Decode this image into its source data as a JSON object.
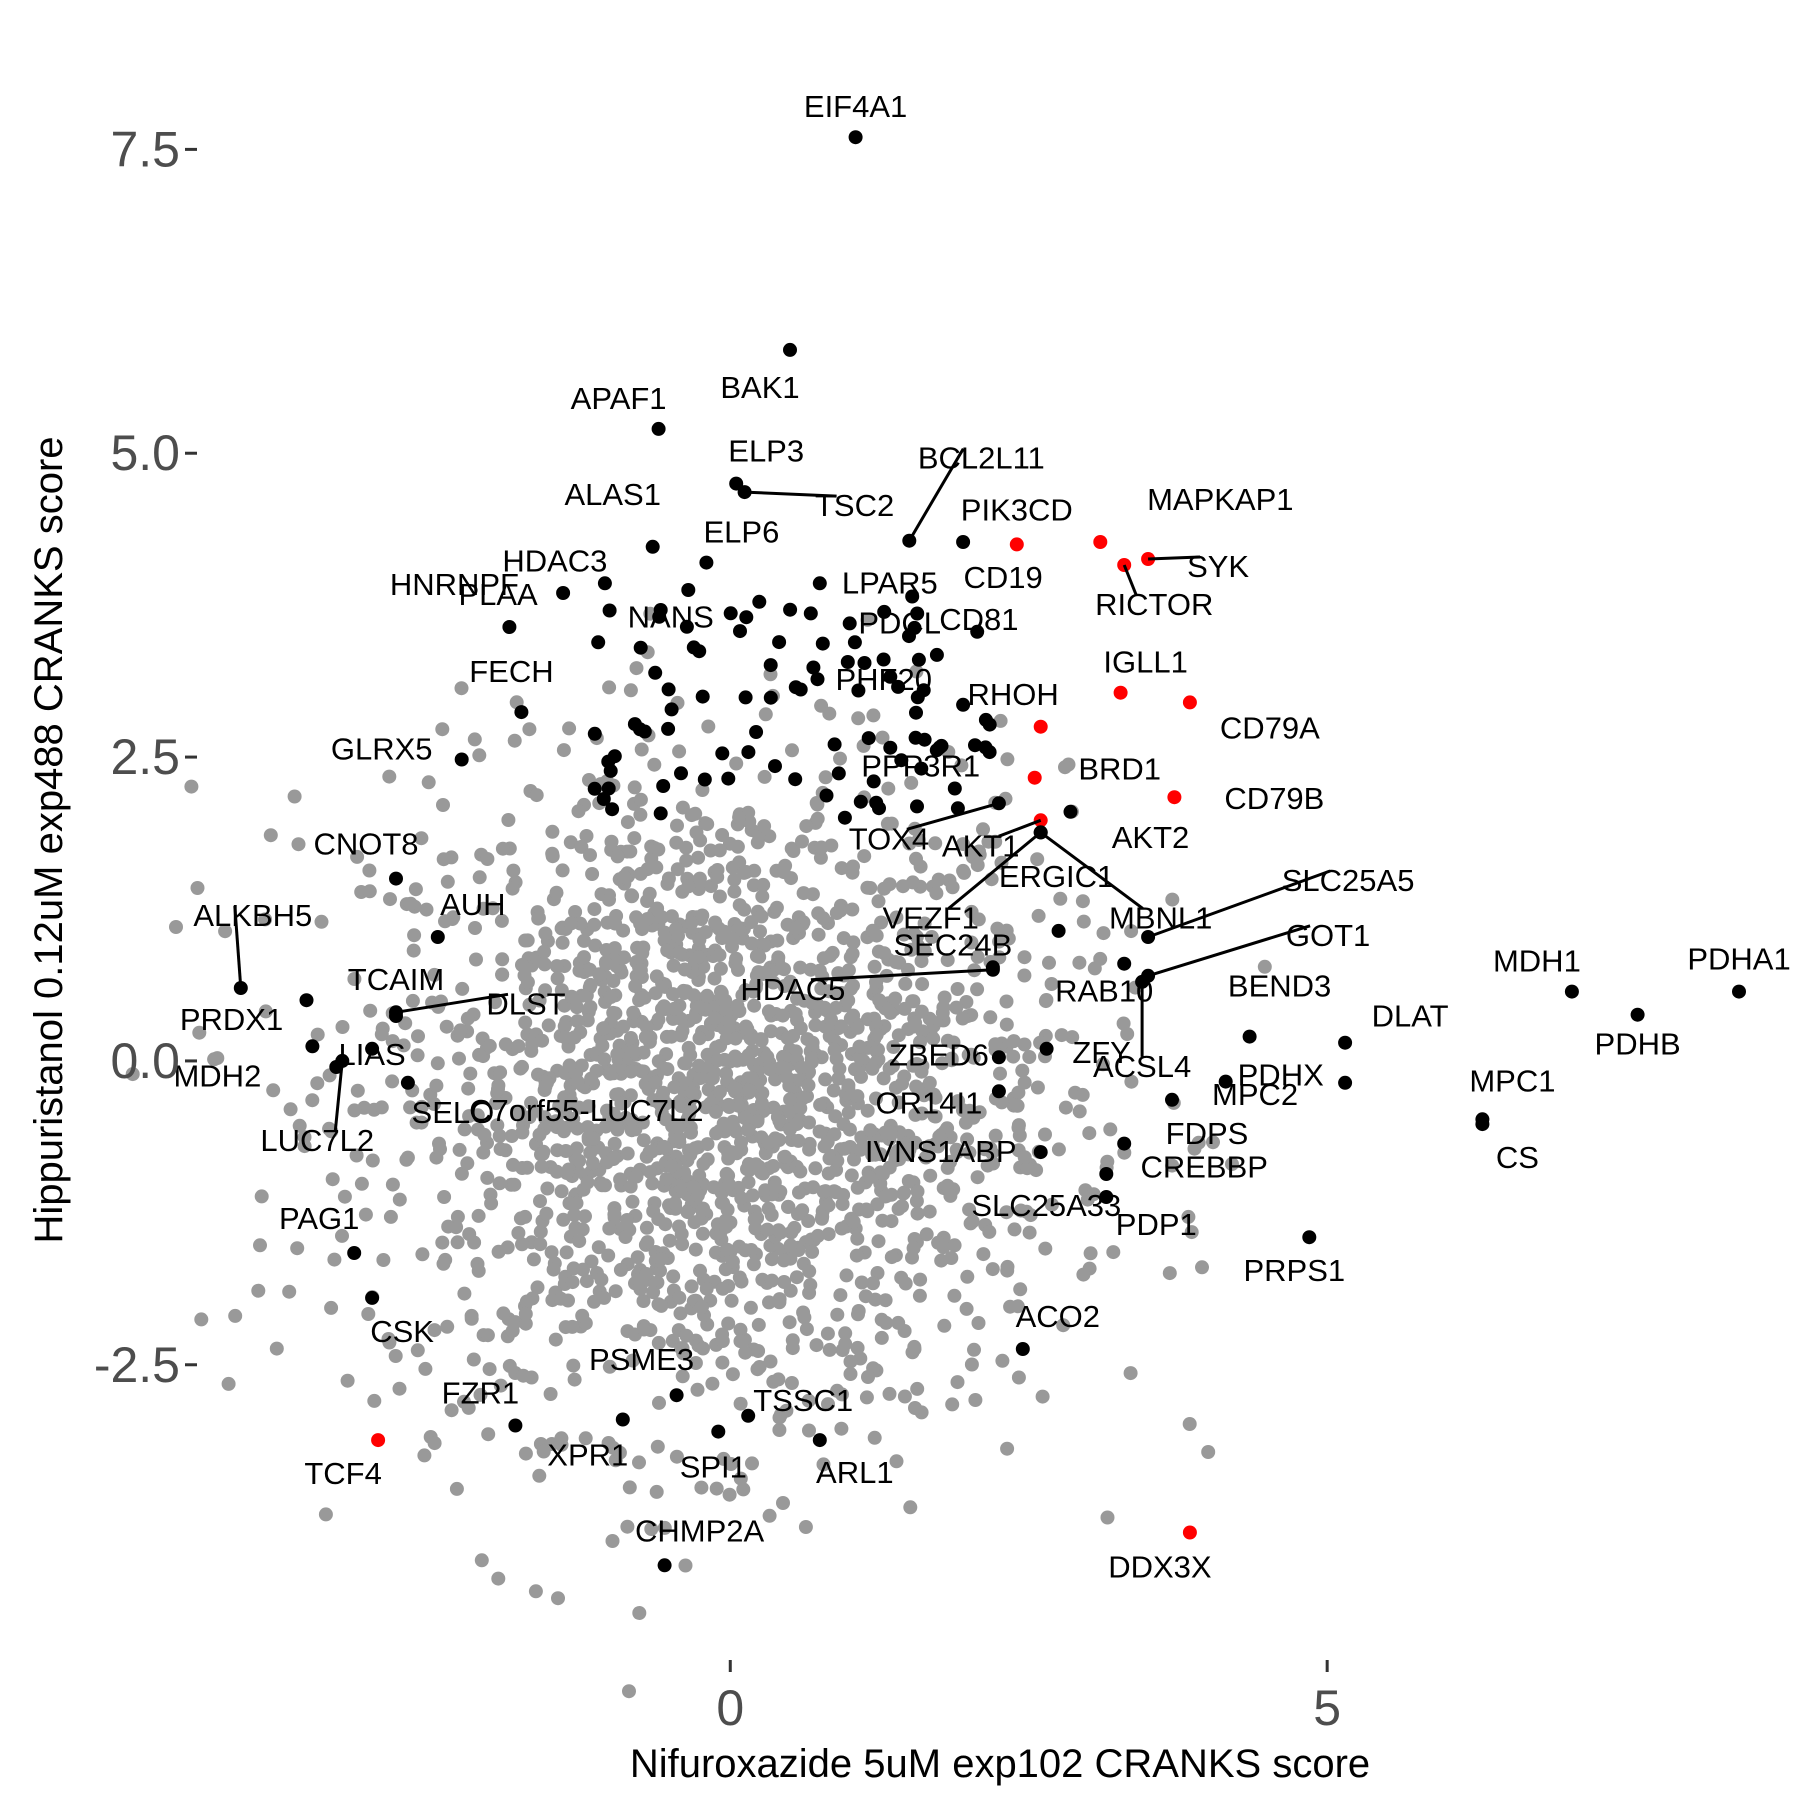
{
  "chart_data": {
    "type": "scatter",
    "title": "",
    "xlabel": "Nifuroxazide 5uM exp102 CRANKS score",
    "ylabel": "Hippuristanol 0.12uM exp488 CRANKS score",
    "xlim": [
      -4.4,
      8.5
    ],
    "ylim": [
      -4.6,
      8.4
    ],
    "x_ticks": [
      {
        "value": 0,
        "label": "0"
      },
      {
        "value": 5,
        "label": "5"
      }
    ],
    "y_ticks": [
      {
        "value": -2.5,
        "label": "-2.5"
      },
      {
        "value": 0,
        "label": "0.0"
      },
      {
        "value": 2.5,
        "label": "2.5"
      },
      {
        "value": 5,
        "label": "5.0"
      },
      {
        "value": 7.5,
        "label": "7.5"
      }
    ],
    "grid": false,
    "legend": "none",
    "colors": {
      "background_points": "#999999",
      "highlighted": "#000000",
      "b_cell_genes": "#ff0000",
      "axis_text": "#4d4d4d"
    },
    "background_cloud": {
      "description_count": 2000,
      "center": [
        -0.1,
        -0.3
      ],
      "sd": [
        1.45,
        1.35
      ],
      "color": "#999999"
    },
    "labeled_points": [
      {
        "label": "EIF4A1",
        "x": 1.05,
        "y": 7.6,
        "color": "#000000"
      },
      {
        "label": "BAK1",
        "x": 0.5,
        "y": 5.85,
        "color": "#000000"
      },
      {
        "label": "APAF1",
        "x": -0.6,
        "y": 5.2,
        "color": "#000000"
      },
      {
        "label": "ELP3",
        "x": 0.05,
        "y": 4.75,
        "color": "#000000"
      },
      {
        "label": "TSC2",
        "x": 0.12,
        "y": 4.68,
        "color": "#000000"
      },
      {
        "label": "BCL2L11",
        "x": 1.5,
        "y": 4.28,
        "color": "#000000"
      },
      {
        "label": "ALAS1",
        "x": -0.65,
        "y": 4.23,
        "color": "#000000"
      },
      {
        "label": "HDAC3",
        "x": -1.05,
        "y": 3.93,
        "color": "#000000"
      },
      {
        "label": "ELP6",
        "x": -0.2,
        "y": 4.1,
        "color": "#000000"
      },
      {
        "label": "LPAR5",
        "x": 0.75,
        "y": 3.93,
        "color": "#000000"
      },
      {
        "label": "PIK3CD",
        "x": 2.4,
        "y": 4.25,
        "color": "#ff0000"
      },
      {
        "label": "MAPKAP1",
        "x": 3.1,
        "y": 4.27,
        "color": "#ff0000"
      },
      {
        "label": "SYK",
        "x": 3.5,
        "y": 4.13,
        "color": "#ff0000"
      },
      {
        "label": "CD19",
        "x": 1.95,
        "y": 4.27,
        "color": "#000000"
      },
      {
        "label": "RICTOR",
        "x": 3.3,
        "y": 4.08,
        "color": "#ff0000"
      },
      {
        "label": "PLAA",
        "x": -1.4,
        "y": 3.85,
        "color": "#000000"
      },
      {
        "label": "HNRNPF",
        "x": -1.85,
        "y": 3.57,
        "color": "#000000"
      },
      {
        "label": "NANS",
        "x": -0.75,
        "y": 3.4,
        "color": "#000000"
      },
      {
        "label": "PDCL",
        "x": 1.0,
        "y": 3.6,
        "color": "#000000"
      },
      {
        "label": "CD81",
        "x": 1.58,
        "y": 3.3,
        "color": "#000000"
      },
      {
        "label": "PHF20",
        "x": 1.62,
        "y": 3.05,
        "color": "#000000"
      },
      {
        "label": "IGLL1",
        "x": 3.27,
        "y": 3.03,
        "color": "#ff0000"
      },
      {
        "label": "CD79A",
        "x": 3.85,
        "y": 2.95,
        "color": "#ff0000"
      },
      {
        "label": "RHOH",
        "x": 1.95,
        "y": 2.93,
        "color": "#000000"
      },
      {
        "label": "FECH",
        "x": -1.75,
        "y": 2.87,
        "color": "#000000"
      },
      {
        "label": "PPP3R1",
        "x": 2.6,
        "y": 2.75,
        "color": "#ff0000"
      },
      {
        "label": "BRD1",
        "x": 2.55,
        "y": 2.33,
        "color": "#ff0000"
      },
      {
        "label": "CD79B",
        "x": 3.72,
        "y": 2.17,
        "color": "#ff0000"
      },
      {
        "label": "GLRX5",
        "x": -2.25,
        "y": 2.48,
        "color": "#000000"
      },
      {
        "label": "TOX4",
        "x": 2.25,
        "y": 2.12,
        "color": "#000000"
      },
      {
        "label": "AKT1",
        "x": 2.6,
        "y": 1.98,
        "color": "#ff0000"
      },
      {
        "label": "AKT2",
        "x": 2.85,
        "y": 2.05,
        "color": "#000000"
      },
      {
        "label": "VEZF1",
        "x": 2.6,
        "y": 1.88,
        "color": "#000000"
      },
      {
        "label": "MBNL1",
        "x": 2.6,
        "y": 1.88,
        "color": "#000000"
      },
      {
        "label": "CNOT8",
        "x": -2.8,
        "y": 1.5,
        "color": "#000000"
      },
      {
        "label": "ALKBH5",
        "x": -4.1,
        "y": 0.6,
        "color": "#000000"
      },
      {
        "label": "AUH",
        "x": -2.45,
        "y": 1.02,
        "color": "#000000"
      },
      {
        "label": "ERGIC1",
        "x": 2.75,
        "y": 1.07,
        "color": "#000000"
      },
      {
        "label": "SLC25A5",
        "x": 3.5,
        "y": 1.02,
        "color": "#000000"
      },
      {
        "label": "GOT1",
        "x": 3.5,
        "y": 0.7,
        "color": "#000000"
      },
      {
        "label": "SEC24B",
        "x": 2.2,
        "y": 0.77,
        "color": "#000000"
      },
      {
        "label": "TCAIM",
        "x": -2.8,
        "y": 0.37,
        "color": "#000000"
      },
      {
        "label": "DLST",
        "x": -2.8,
        "y": 0.4,
        "color": "#000000"
      },
      {
        "label": "HDAC5",
        "x": 2.2,
        "y": 0.75,
        "color": "#000000"
      },
      {
        "label": "RAB10",
        "x": 3.3,
        "y": 0.8,
        "color": "#000000"
      },
      {
        "label": "MDH1",
        "x": 7.05,
        "y": 0.57,
        "color": "#000000"
      },
      {
        "label": "PDHA1",
        "x": 8.45,
        "y": 0.57,
        "color": "#000000"
      },
      {
        "label": "BEND3",
        "x": 4.35,
        "y": 0.2,
        "color": "#000000"
      },
      {
        "label": "PRDX1",
        "x": -3.55,
        "y": 0.5,
        "color": "#000000"
      },
      {
        "label": "LIAS",
        "x": -3.0,
        "y": 0.1,
        "color": "#000000"
      },
      {
        "label": "ACSL4",
        "x": 3.45,
        "y": 0.65,
        "color": "#000000"
      },
      {
        "label": "ZBED6",
        "x": 2.25,
        "y": 0.03,
        "color": "#000000"
      },
      {
        "label": "DLAT",
        "x": 5.15,
        "y": 0.15,
        "color": "#000000"
      },
      {
        "label": "PDHB",
        "x": 7.6,
        "y": 0.38,
        "color": "#000000"
      },
      {
        "label": "C7orf55-LUC7L2",
        "x": -3.3,
        "y": -0.05,
        "color": "#000000"
      },
      {
        "label": "MDH2",
        "x": -3.5,
        "y": 0.12,
        "color": "#000000"
      },
      {
        "label": "PDHX",
        "x": 4.15,
        "y": -0.17,
        "color": "#000000"
      },
      {
        "label": "OR14I1",
        "x": 2.25,
        "y": -0.25,
        "color": "#000000"
      },
      {
        "label": "ZFY",
        "x": 2.65,
        "y": 0.1,
        "color": "#000000"
      },
      {
        "label": "LUC7L2",
        "x": -3.25,
        "y": 0.0,
        "color": "#000000"
      },
      {
        "label": "SELO",
        "x": -2.7,
        "y": -0.18,
        "color": "#000000"
      },
      {
        "label": "MPC1",
        "x": 6.3,
        "y": -0.48,
        "color": "#000000"
      },
      {
        "label": "MPC2",
        "x": 5.15,
        "y": -0.18,
        "color": "#000000"
      },
      {
        "label": "FDPS",
        "x": 3.7,
        "y": -0.32,
        "color": "#000000"
      },
      {
        "label": "CS",
        "x": 6.3,
        "y": -0.52,
        "color": "#000000"
      },
      {
        "label": "IVNS1ABP",
        "x": 2.6,
        "y": -0.75,
        "color": "#000000"
      },
      {
        "label": "CREBBP",
        "x": 3.3,
        "y": -0.68,
        "color": "#000000"
      },
      {
        "label": "SLC25A33",
        "x": 3.15,
        "y": -0.93,
        "color": "#000000"
      },
      {
        "label": "PDP1",
        "x": 3.15,
        "y": -1.12,
        "color": "#000000"
      },
      {
        "label": "PAG1",
        "x": -3.15,
        "y": -1.58,
        "color": "#000000"
      },
      {
        "label": "PRPS1",
        "x": 4.85,
        "y": -1.45,
        "color": "#000000"
      },
      {
        "label": "CSK",
        "x": -3.0,
        "y": -1.95,
        "color": "#000000"
      },
      {
        "label": "ACO2",
        "x": 2.45,
        "y": -2.37,
        "color": "#000000"
      },
      {
        "label": "PSME3",
        "x": -0.45,
        "y": -2.75,
        "color": "#000000"
      },
      {
        "label": "TSSC1",
        "x": 0.15,
        "y": -2.92,
        "color": "#000000"
      },
      {
        "label": "FZR1",
        "x": -1.8,
        "y": -3.0,
        "color": "#000000"
      },
      {
        "label": "XPR1",
        "x": -0.9,
        "y": -2.95,
        "color": "#000000"
      },
      {
        "label": "SPI1",
        "x": -0.1,
        "y": -3.05,
        "color": "#000000"
      },
      {
        "label": "TCF4",
        "x": -2.95,
        "y": -3.12,
        "color": "#ff0000"
      },
      {
        "label": "ARL1",
        "x": 0.75,
        "y": -3.12,
        "color": "#000000"
      },
      {
        "label": "CHMP2A",
        "x": -0.55,
        "y": -4.15,
        "color": "#000000"
      },
      {
        "label": "DDX3X",
        "x": 3.85,
        "y": -3.88,
        "color": "#ff0000"
      }
    ],
    "extra_black_points_note": "unlabeled black points above the cloud"
  }
}
